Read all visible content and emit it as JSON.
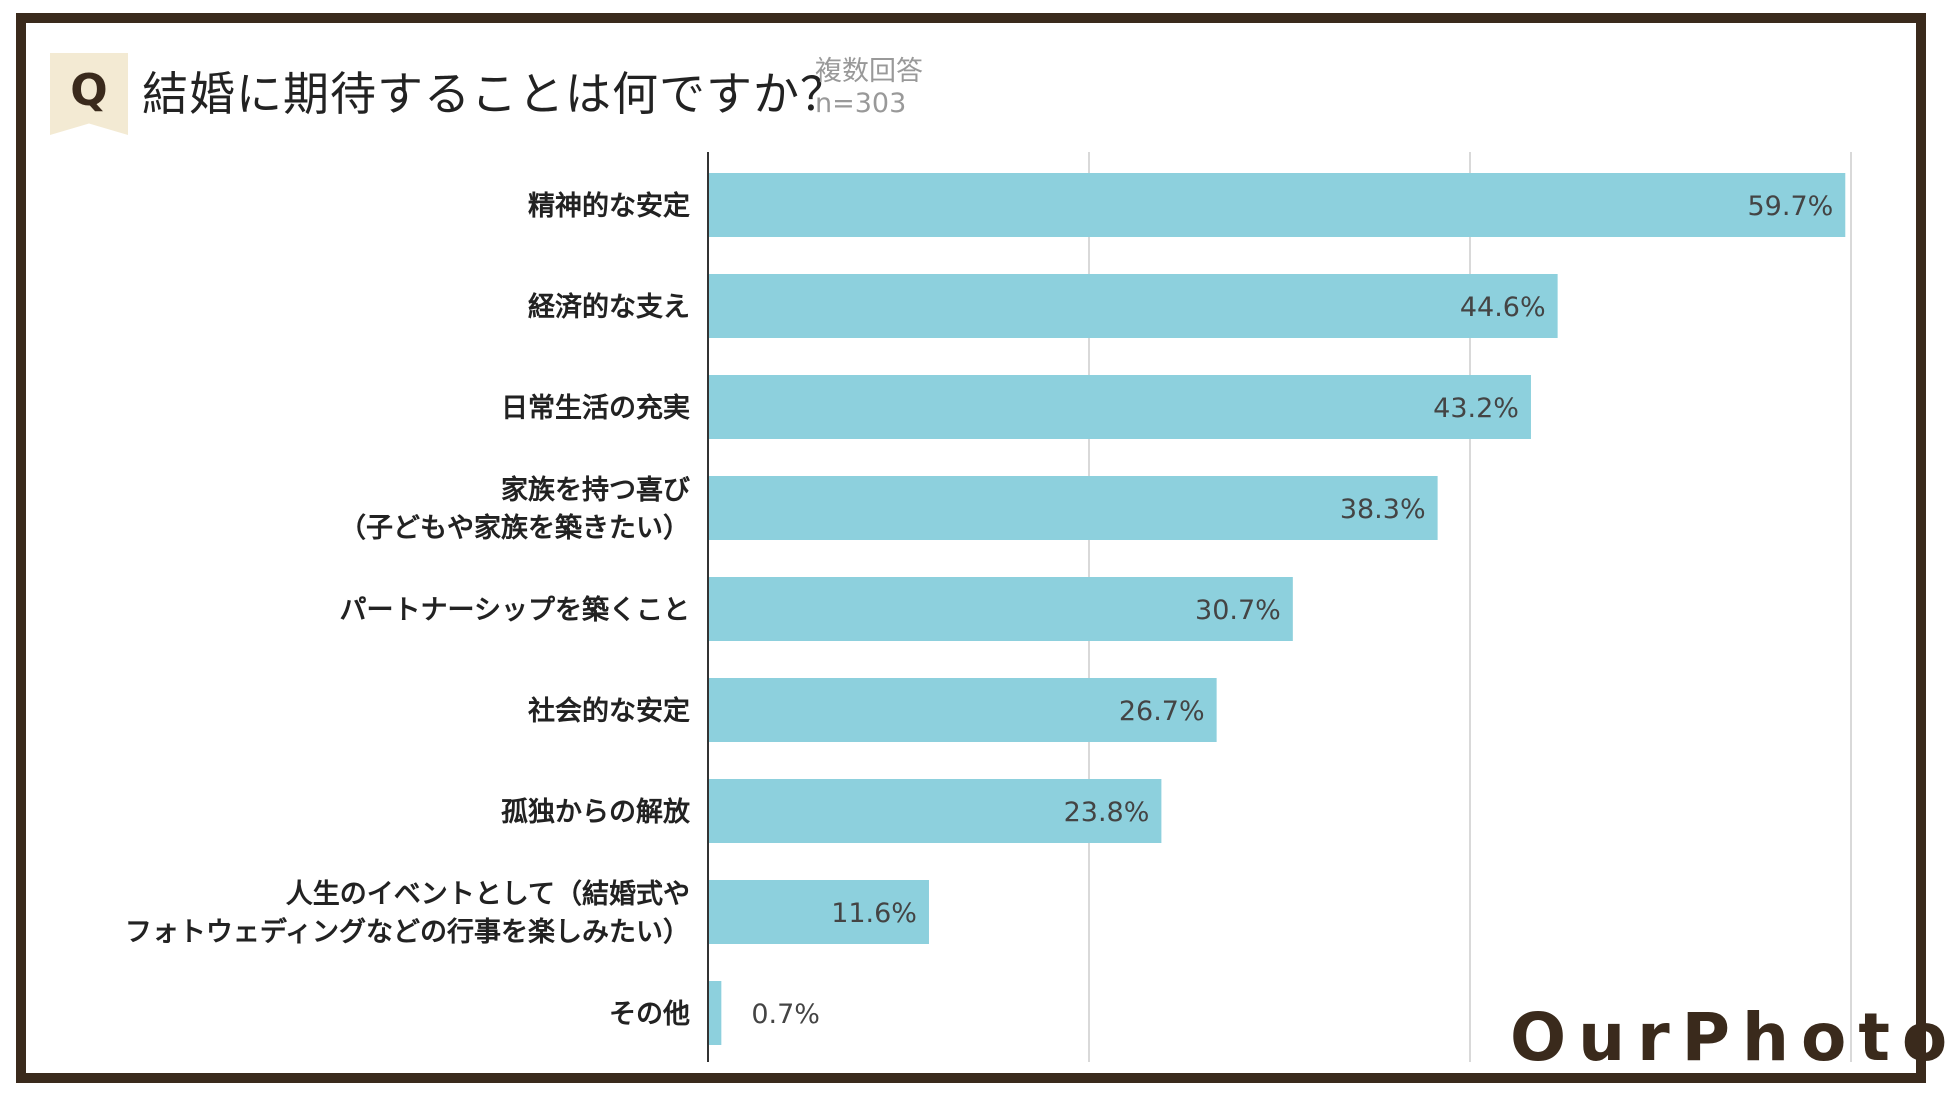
{
  "header": {
    "badge": "Q",
    "title": "結婚に期待することは何ですか？",
    "note": "複数回答",
    "sample": "n=303"
  },
  "logo": "OurPhoto",
  "colors": {
    "bar": "#8dd0dd",
    "frame": "#3a2a1c",
    "badge_bg": "#f3ead3",
    "grid": "#d9d9d9"
  },
  "chart_data": {
    "type": "bar",
    "orientation": "horizontal",
    "categories": [
      [
        "精神的な安定"
      ],
      [
        "経済的な支え"
      ],
      [
        "日常生活の充実"
      ],
      [
        "家族を持つ喜び",
        "（子どもや家族を築きたい）"
      ],
      [
        "パートナーシップを築くこと"
      ],
      [
        "社会的な安定"
      ],
      [
        "孤独からの解放"
      ],
      [
        "人生のイベントとして（結婚式や",
        "フォトウェディングなどの行事を楽しみたい）"
      ],
      [
        "その他"
      ]
    ],
    "values": [
      59.7,
      44.6,
      43.2,
      38.3,
      30.7,
      26.7,
      23.8,
      11.6,
      0.7
    ],
    "value_labels": [
      "59.7%",
      "44.6%",
      "43.2%",
      "38.3%",
      "30.7%",
      "26.7%",
      "23.8%",
      "11.6%",
      "0.7%"
    ],
    "xlim": [
      0,
      60
    ],
    "gridlines": [
      20,
      40,
      60
    ],
    "grid": true,
    "legend": "none"
  }
}
